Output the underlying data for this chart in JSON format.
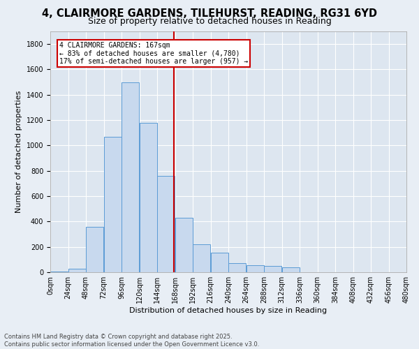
{
  "title_line1": "4, CLAIRMORE GARDENS, TILEHURST, READING, RG31 6YD",
  "title_line2": "Size of property relative to detached houses in Reading",
  "xlabel": "Distribution of detached houses by size in Reading",
  "ylabel": "Number of detached properties",
  "annotation_line1": "4 CLAIRMORE GARDENS: 167sqm",
  "annotation_line2": "← 83% of detached houses are smaller (4,780)",
  "annotation_line3": "17% of semi-detached houses are larger (957) →",
  "property_size": 167,
  "bin_edges": [
    0,
    24,
    48,
    72,
    96,
    120,
    144,
    168,
    192,
    216,
    240,
    264,
    288,
    312,
    336,
    360,
    384,
    408,
    432,
    456,
    480
  ],
  "bar_heights": [
    5,
    30,
    360,
    1070,
    1500,
    1180,
    760,
    430,
    220,
    155,
    70,
    55,
    50,
    40,
    0,
    0,
    0,
    0,
    0,
    0
  ],
  "bar_color": "#c8d9ee",
  "bar_edge_color": "#5b9bd5",
  "vline_color": "#cc0000",
  "annotation_box_color": "#cc0000",
  "bg_color": "#e8eef5",
  "plot_bg_color": "#dde6f0",
  "grid_color": "#ffffff",
  "ylim": [
    0,
    1900
  ],
  "yticks": [
    0,
    200,
    400,
    600,
    800,
    1000,
    1200,
    1400,
    1600,
    1800
  ],
  "footer_line1": "Contains HM Land Registry data © Crown copyright and database right 2025.",
  "footer_line2": "Contains public sector information licensed under the Open Government Licence v3.0.",
  "title1_fontsize": 10.5,
  "title2_fontsize": 9,
  "axis_label_fontsize": 8,
  "tick_fontsize": 7,
  "annotation_fontsize": 7,
  "footer_fontsize": 6
}
